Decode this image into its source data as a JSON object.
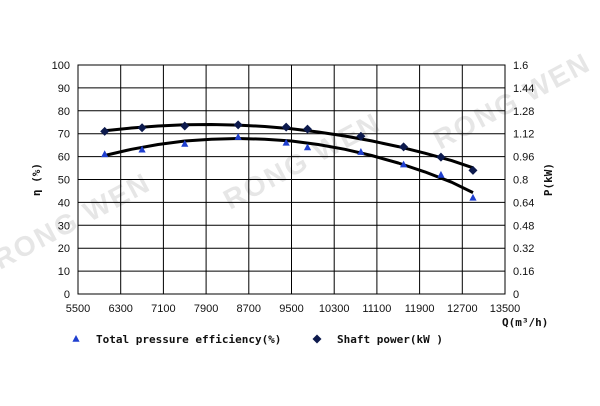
{
  "watermark": {
    "text_1": "RONG WEN",
    "text_2": "RONG WEN",
    "text_3": "RONG WEN"
  },
  "chart_data": {
    "type": "line",
    "title": "",
    "xlabel": "Q(m³/h)",
    "ylabel_left": "η (%)",
    "ylabel_right": "P(kW)",
    "xlim": [
      5500,
      13500
    ],
    "ylim_left": [
      0,
      100
    ],
    "ylim_right": [
      0,
      1.6
    ],
    "x_ticks": [
      5500,
      6300,
      7100,
      7900,
      8700,
      9500,
      10300,
      11100,
      11900,
      12700,
      13500
    ],
    "y_left_ticks": [
      0,
      10,
      20,
      30,
      40,
      50,
      60,
      70,
      80,
      90,
      100
    ],
    "y_right_ticks": [
      "0",
      "0.16",
      "0.32",
      "0.48",
      "0.64",
      "0.8",
      "0.96",
      "1.12",
      "1.28",
      "1.44",
      "1.6"
    ],
    "grid": true,
    "legend_position": "bottom",
    "series": [
      {
        "name": "Total pressure efficiency(%)",
        "axis": "left",
        "marker": "triangle",
        "color": "#1f3fcf",
        "x": [
          6000,
          6700,
          7500,
          8500,
          9400,
          9800,
          10800,
          11600,
          12300,
          12900
        ],
        "y": [
          61,
          63,
          65.5,
          68.5,
          66,
          64,
          62,
          56.5,
          52,
          42
        ],
        "fit_line": {
          "color": "#000000",
          "x": [
            6000,
            6500,
            7000,
            7500,
            8000,
            8500,
            9000,
            9500,
            10000,
            10500,
            11000,
            11500,
            12000,
            12500,
            12900
          ],
          "y": [
            60.5,
            63.2,
            65.3,
            66.8,
            67.6,
            67.9,
            67.6,
            66.8,
            65.3,
            63.2,
            60.5,
            57.2,
            53.3,
            48.8,
            44.3
          ]
        }
      },
      {
        "name": "Shaft power(kW )",
        "axis": "right",
        "marker": "diamond",
        "color": "#0d1a4d",
        "x": [
          6000,
          6700,
          7500,
          8500,
          9400,
          9800,
          10800,
          11600,
          12300,
          12900
        ],
        "y": [
          1.136,
          1.162,
          1.174,
          1.182,
          1.166,
          1.152,
          1.102,
          1.028,
          0.956,
          0.864
        ],
        "fit_line": {
          "color": "#000000",
          "x": [
            6000,
            6500,
            7000,
            7500,
            8000,
            8500,
            9000,
            9500,
            10000,
            10500,
            11000,
            11500,
            12000,
            12500,
            12900
          ],
          "y": [
            1.14,
            1.16,
            1.174,
            1.182,
            1.184,
            1.18,
            1.17,
            1.154,
            1.132,
            1.104,
            1.07,
            1.03,
            0.984,
            0.932,
            0.882
          ]
        }
      }
    ]
  }
}
